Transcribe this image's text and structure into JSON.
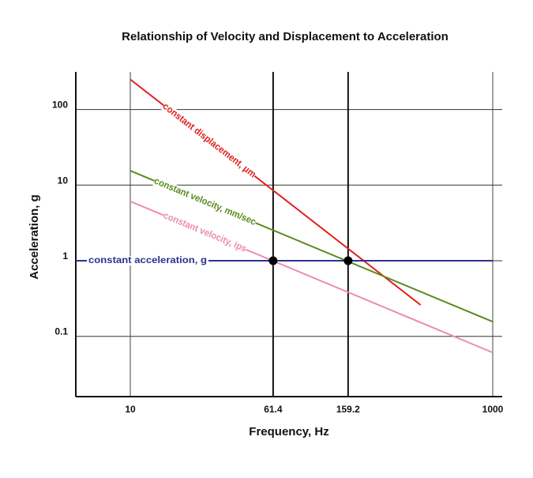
{
  "chart_data": {
    "type": "line",
    "title": "Relationship of Velocity and Displacement to Acceleration",
    "xlabel": "Frequency, Hz",
    "ylabel": "Acceleration, g",
    "x_scale": "log",
    "y_scale": "log",
    "xlim": [
      5,
      1000
    ],
    "ylim": [
      0.02,
      300
    ],
    "x_ticks": [
      10,
      61.4,
      159.2,
      1000
    ],
    "x_tick_labels": [
      "10",
      "61.4",
      "159.2",
      "1000"
    ],
    "y_ticks": [
      100,
      10,
      1,
      0.1
    ],
    "y_tick_labels": [
      "100",
      "10",
      "1",
      "0.1"
    ],
    "grid": true,
    "series": [
      {
        "name": "constant displacement, μm",
        "color": "#e0201c",
        "x": [
          10,
          400
        ],
        "y": [
          250,
          0.26
        ]
      },
      {
        "name": "constant velocity, mm/sec",
        "color": "#5b8a1e",
        "x": [
          10,
          1000
        ],
        "y": [
          15.5,
          0.156
        ]
      },
      {
        "name": "constant velocity, ips",
        "color": "#ec8ab5",
        "x": [
          10,
          1000
        ],
        "y": [
          6.1,
          0.061
        ]
      },
      {
        "name": "constant acceleration, g",
        "color": "#2e3192",
        "x": [
          5,
          1000
        ],
        "y": [
          1,
          1
        ]
      }
    ],
    "points": [
      {
        "x": 61.4,
        "y": 1
      },
      {
        "x": 159.2,
        "y": 1
      }
    ]
  }
}
